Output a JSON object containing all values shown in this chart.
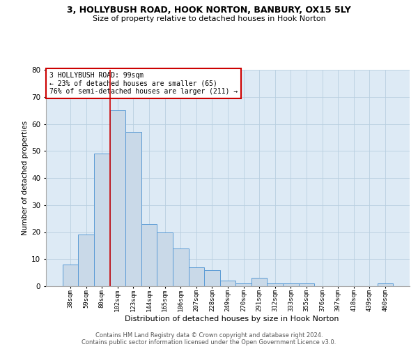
{
  "title1": "3, HOLLYBUSH ROAD, HOOK NORTON, BANBURY, OX15 5LY",
  "title2": "Size of property relative to detached houses in Hook Norton",
  "xlabel": "Distribution of detached houses by size in Hook Norton",
  "ylabel": "Number of detached properties",
  "categories": [
    "38sqm",
    "59sqm",
    "80sqm",
    "102sqm",
    "123sqm",
    "144sqm",
    "165sqm",
    "186sqm",
    "207sqm",
    "228sqm",
    "249sqm",
    "270sqm",
    "291sqm",
    "312sqm",
    "333sqm",
    "355sqm",
    "376sqm",
    "397sqm",
    "418sqm",
    "439sqm",
    "460sqm"
  ],
  "values": [
    8,
    19,
    49,
    65,
    57,
    23,
    20,
    14,
    7,
    6,
    2,
    1,
    3,
    1,
    1,
    1,
    0,
    0,
    0,
    0,
    1
  ],
  "bar_color": "#c9d9e8",
  "bar_edge_color": "#5b9bd5",
  "grid_color": "#b8cfe0",
  "background_color": "#ddeaf5",
  "property_line_index": 3,
  "annotation_text": "3 HOLLYBUSH ROAD: 99sqm\n← 23% of detached houses are smaller (65)\n76% of semi-detached houses are larger (211) →",
  "annotation_box_color": "#ffffff",
  "annotation_box_edge": "#cc0000",
  "property_line_color": "#cc0000",
  "ylim": [
    0,
    80
  ],
  "yticks": [
    0,
    10,
    20,
    30,
    40,
    50,
    60,
    70,
    80
  ],
  "footer1": "Contains HM Land Registry data © Crown copyright and database right 2024.",
  "footer2": "Contains public sector information licensed under the Open Government Licence v3.0."
}
